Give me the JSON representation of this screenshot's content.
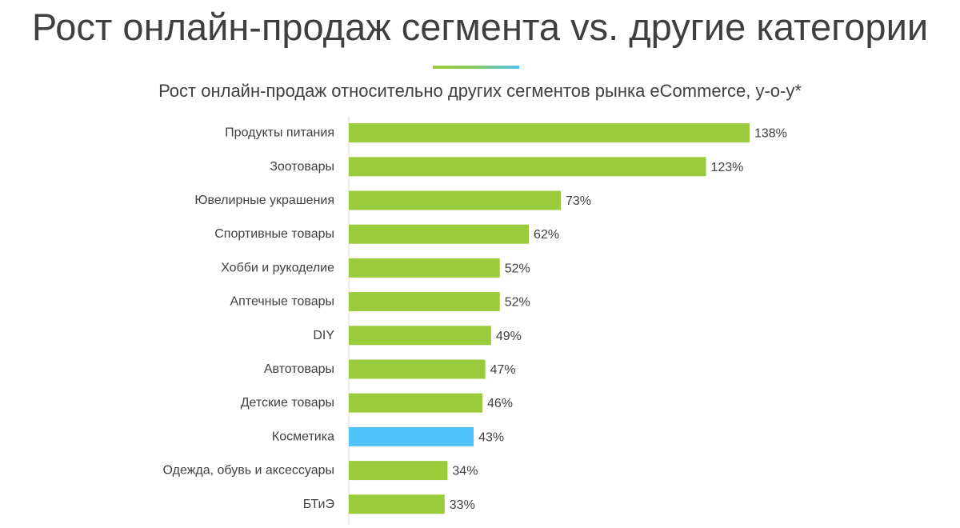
{
  "slide": {
    "title": "Рост онлайн-продаж сегмента vs. другие категории"
  },
  "colors": {
    "bar": "#9ACB3C",
    "highlight": "#4FC3F7",
    "axis": "#D9D9D9",
    "text": "#404040"
  },
  "chart_data": {
    "type": "bar",
    "orientation": "horizontal",
    "title": "Рост онлайн-продаж относительно других сегментов рынка eCommerce, y-o-y*",
    "xlabel": "",
    "ylabel": "",
    "unit": "%",
    "grid": false,
    "legend": "none",
    "xlim": [
      0,
      140
    ],
    "categories": [
      "Продукты питания",
      "Зоотовары",
      "Ювелирные украшения",
      "Спортивные товары",
      "Хобби и рукоделие",
      "Аптечные товары",
      "DIY",
      "Автотовары",
      "Детские товары",
      "Косметика",
      "Одежда, обувь и аксессуары",
      "БТиЭ"
    ],
    "values": [
      138,
      123,
      73,
      62,
      52,
      52,
      49,
      47,
      46,
      43,
      34,
      33
    ],
    "data_labels": [
      "138%",
      "123%",
      "73%",
      "62%",
      "52%",
      "52%",
      "49%",
      "47%",
      "46%",
      "43%",
      "34%",
      "33%"
    ],
    "highlighted_category": "Косметика"
  }
}
